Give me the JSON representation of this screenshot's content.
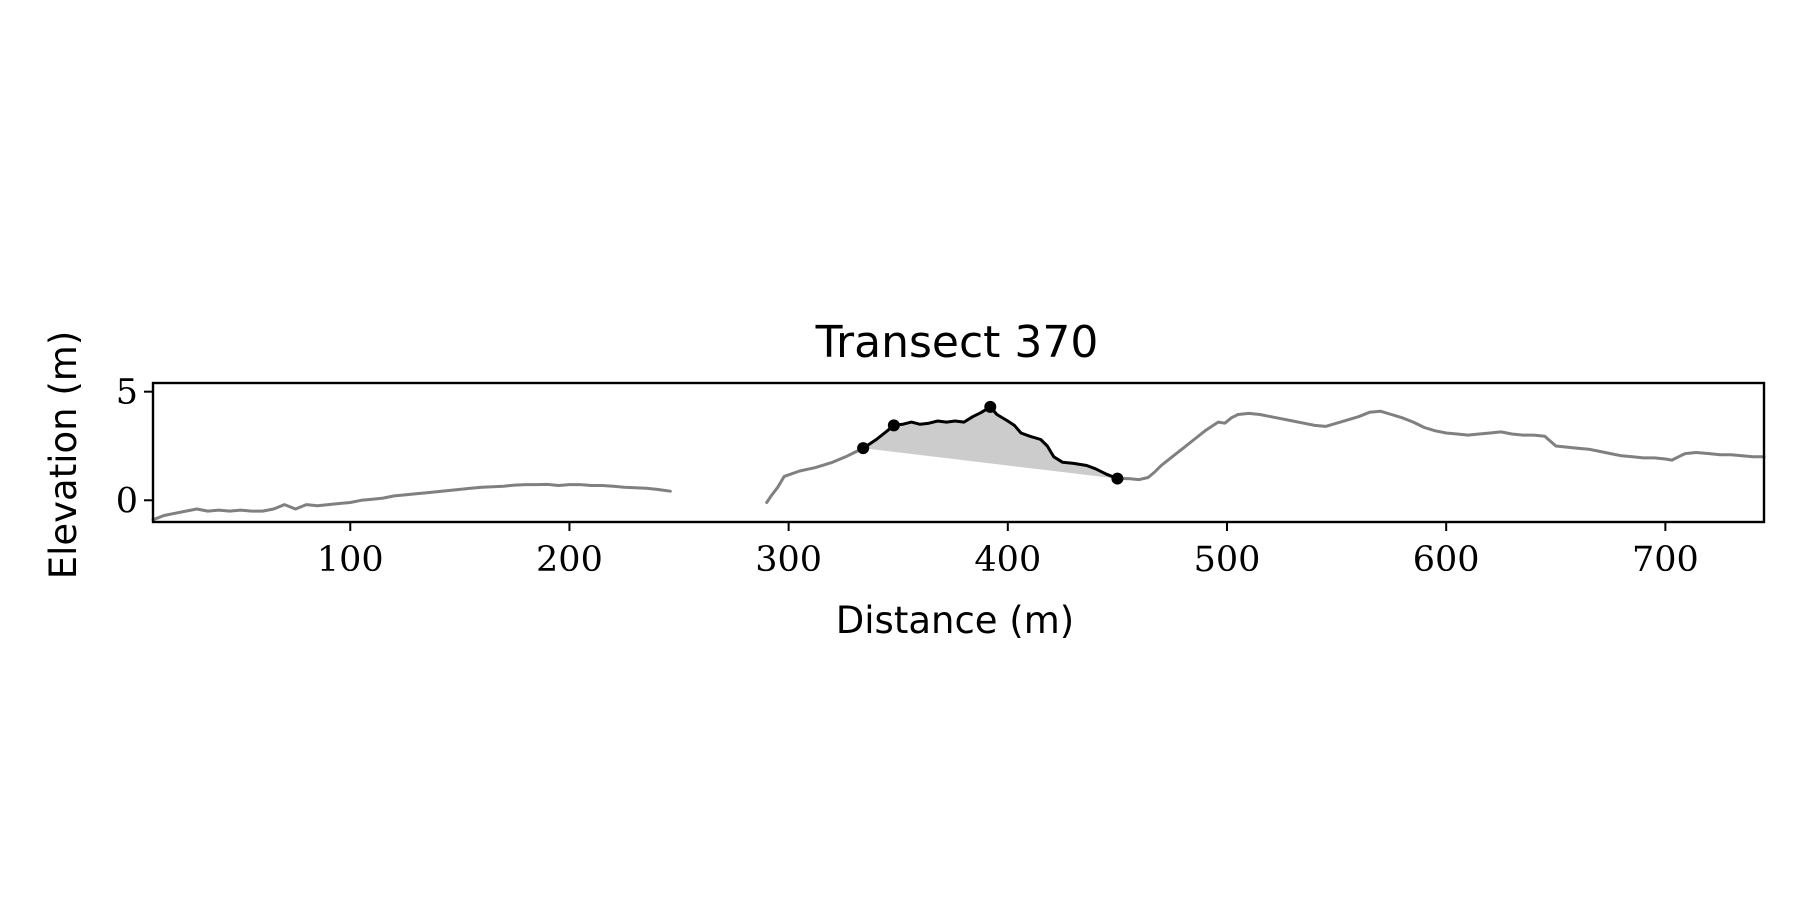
{
  "chart_data": {
    "type": "line",
    "title": "Transect 370",
    "xlabel": "Distance (m)",
    "ylabel": "Elevation (m)",
    "xlim": [
      10,
      745
    ],
    "ylim": [
      -1,
      5.4
    ],
    "xticks": [
      100,
      200,
      300,
      400,
      500,
      600,
      700
    ],
    "xtick_labels": [
      "100",
      "200",
      "300",
      "400",
      "500",
      "600",
      "700"
    ],
    "yticks": [
      0,
      5
    ],
    "ytick_labels": [
      "0",
      "5"
    ],
    "grid": false,
    "colors": {
      "profile": "#808080",
      "feature": "#000000",
      "fill": "#cccccc",
      "marker": "#000000"
    },
    "series": [
      {
        "role": "profile",
        "segments": [
          [
            [
              10,
              -0.9
            ],
            [
              15,
              -0.7
            ],
            [
              20,
              -0.6
            ],
            [
              25,
              -0.5
            ],
            [
              30,
              -0.4
            ],
            [
              35,
              -0.5
            ],
            [
              40,
              -0.45
            ],
            [
              45,
              -0.5
            ],
            [
              50,
              -0.45
            ],
            [
              55,
              -0.5
            ],
            [
              60,
              -0.5
            ],
            [
              65,
              -0.4
            ],
            [
              70,
              -0.2
            ],
            [
              75,
              -0.4
            ],
            [
              80,
              -0.2
            ],
            [
              85,
              -0.25
            ],
            [
              90,
              -0.2
            ],
            [
              95,
              -0.15
            ],
            [
              100,
              -0.1
            ],
            [
              105,
              0.0
            ],
            [
              110,
              0.05
            ],
            [
              115,
              0.1
            ],
            [
              120,
              0.2
            ],
            [
              125,
              0.25
            ],
            [
              130,
              0.3
            ],
            [
              135,
              0.35
            ],
            [
              140,
              0.4
            ],
            [
              145,
              0.45
            ],
            [
              150,
              0.5
            ],
            [
              155,
              0.55
            ],
            [
              160,
              0.6
            ],
            [
              165,
              0.62
            ],
            [
              170,
              0.65
            ],
            [
              175,
              0.7
            ],
            [
              180,
              0.72
            ],
            [
              185,
              0.72
            ],
            [
              190,
              0.73
            ],
            [
              195,
              0.68
            ],
            [
              200,
              0.72
            ],
            [
              205,
              0.72
            ],
            [
              210,
              0.68
            ],
            [
              215,
              0.68
            ],
            [
              220,
              0.65
            ],
            [
              225,
              0.6
            ],
            [
              230,
              0.58
            ],
            [
              235,
              0.55
            ],
            [
              240,
              0.5
            ],
            [
              246,
              0.42
            ]
          ],
          [
            [
              290,
              -0.1
            ],
            [
              292,
              0.2
            ],
            [
              295,
              0.6
            ],
            [
              298,
              1.1
            ],
            [
              305,
              1.35
            ],
            [
              312,
              1.5
            ],
            [
              320,
              1.75
            ],
            [
              326,
              2.0
            ],
            [
              330,
              2.2
            ],
            [
              334,
              2.4
            ]
          ],
          [
            [
              450,
              1.0
            ],
            [
              455,
              1.0
            ],
            [
              460,
              0.95
            ],
            [
              464,
              1.05
            ],
            [
              467,
              1.3
            ],
            [
              470,
              1.6
            ],
            [
              475,
              2.0
            ],
            [
              480,
              2.4
            ],
            [
              485,
              2.8
            ],
            [
              490,
              3.2
            ],
            [
              493,
              3.4
            ],
            [
              496,
              3.6
            ],
            [
              499,
              3.55
            ],
            [
              502,
              3.8
            ],
            [
              505,
              3.95
            ],
            [
              510,
              4.0
            ],
            [
              515,
              3.95
            ],
            [
              520,
              3.85
            ],
            [
              525,
              3.75
            ],
            [
              530,
              3.65
            ],
            [
              535,
              3.55
            ],
            [
              540,
              3.45
            ],
            [
              545,
              3.4
            ],
            [
              550,
              3.55
            ],
            [
              555,
              3.7
            ],
            [
              560,
              3.85
            ],
            [
              565,
              4.05
            ],
            [
              570,
              4.1
            ],
            [
              575,
              3.95
            ],
            [
              580,
              3.8
            ],
            [
              585,
              3.6
            ],
            [
              590,
              3.35
            ],
            [
              595,
              3.2
            ],
            [
              600,
              3.1
            ],
            [
              605,
              3.05
            ],
            [
              610,
              3.0
            ],
            [
              615,
              3.05
            ],
            [
              620,
              3.1
            ],
            [
              625,
              3.15
            ],
            [
              630,
              3.05
            ],
            [
              635,
              3.0
            ],
            [
              640,
              3.0
            ],
            [
              645,
              2.95
            ],
            [
              650,
              2.5
            ],
            [
              655,
              2.45
            ],
            [
              660,
              2.4
            ],
            [
              665,
              2.35
            ],
            [
              670,
              2.25
            ],
            [
              675,
              2.15
            ],
            [
              680,
              2.05
            ],
            [
              685,
              2.0
            ],
            [
              690,
              1.95
            ],
            [
              695,
              1.95
            ],
            [
              700,
              1.9
            ],
            [
              703,
              1.85
            ],
            [
              706,
              2.0
            ],
            [
              709,
              2.15
            ],
            [
              714,
              2.2
            ],
            [
              720,
              2.15
            ],
            [
              725,
              2.1
            ],
            [
              730,
              2.1
            ],
            [
              735,
              2.05
            ],
            [
              740,
              2.0
            ],
            [
              745,
              2.0
            ]
          ]
        ]
      },
      {
        "role": "feature",
        "points": [
          [
            334,
            2.4
          ],
          [
            340,
            2.8
          ],
          [
            345,
            3.2
          ],
          [
            348,
            3.45
          ],
          [
            352,
            3.5
          ],
          [
            356,
            3.6
          ],
          [
            360,
            3.5
          ],
          [
            364,
            3.55
          ],
          [
            368,
            3.65
          ],
          [
            372,
            3.6
          ],
          [
            376,
            3.65
          ],
          [
            380,
            3.6
          ],
          [
            384,
            3.85
          ],
          [
            388,
            4.05
          ],
          [
            392,
            4.3
          ],
          [
            395,
            3.95
          ],
          [
            400,
            3.65
          ],
          [
            403,
            3.45
          ],
          [
            406,
            3.1
          ],
          [
            410,
            2.95
          ],
          [
            415,
            2.8
          ],
          [
            418,
            2.5
          ],
          [
            421,
            2.0
          ],
          [
            425,
            1.75
          ],
          [
            430,
            1.7
          ],
          [
            436,
            1.6
          ],
          [
            440,
            1.45
          ],
          [
            445,
            1.2
          ],
          [
            450,
            1.0
          ]
        ]
      }
    ],
    "baseline": [
      [
        334,
        2.4
      ],
      [
        450,
        1.0
      ]
    ],
    "markers": [
      [
        334,
        2.4
      ],
      [
        348,
        3.45
      ],
      [
        392,
        4.3
      ],
      [
        450,
        1.0
      ]
    ]
  }
}
